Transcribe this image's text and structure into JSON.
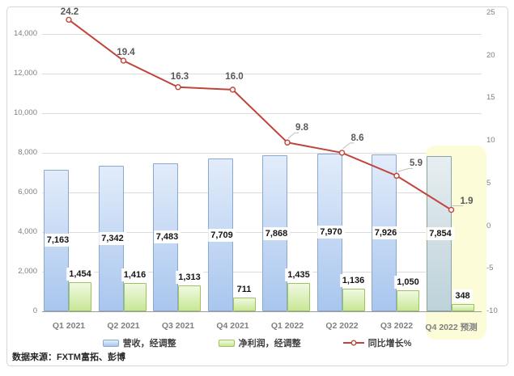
{
  "chart_data": {
    "type": "combo-bar-line",
    "categories": [
      "Q1 2021",
      "Q2 2021",
      "Q3 2021",
      "Q4 2021",
      "Q1 2022",
      "Q2 2022",
      "Q3 2022",
      "Q4 2022 预测"
    ],
    "series": [
      {
        "name": "营收，经调整",
        "type": "bar",
        "axis": "left",
        "values": [
          7163,
          7342,
          7483,
          7709,
          7868,
          7970,
          7926,
          7854
        ],
        "value_labels": [
          "7,163",
          "7,342",
          "7,483",
          "7,709",
          "7,868",
          "7,970",
          "7,926",
          "7,854"
        ]
      },
      {
        "name": "净利润，经调整",
        "type": "bar",
        "axis": "left",
        "values": [
          1454,
          1416,
          1313,
          711,
          1435,
          1136,
          1050,
          348
        ],
        "value_labels": [
          "1,454",
          "1,416",
          "1,313",
          "711",
          "1,435",
          "1,136",
          "1,050",
          "348"
        ]
      },
      {
        "name": "同比增长%",
        "type": "line",
        "axis": "right",
        "values": [
          24.2,
          19.4,
          16.3,
          16.0,
          9.8,
          8.6,
          5.9,
          1.9
        ],
        "value_labels": [
          "24.2",
          "19.4",
          "16.3",
          "16.0",
          "9.8",
          "8.6",
          "5.9",
          "1.9"
        ]
      }
    ],
    "left_axis": {
      "tick_values": [
        14000,
        12000,
        10000,
        8000,
        6000,
        4000,
        2000,
        0
      ],
      "tick_labels": [
        "14,000",
        "12,000",
        "10,000",
        "8,000",
        "6,000",
        "4,000",
        "2,000",
        "0"
      ],
      "min": 0
    },
    "right_axis": {
      "tick_values": [
        25,
        20,
        15,
        10,
        5,
        0,
        -5,
        -10
      ],
      "tick_labels": [
        "25",
        "20",
        "15",
        "10",
        "5",
        "0",
        "-5",
        "-10"
      ],
      "min": -10,
      "max": 25
    },
    "grid": true,
    "legend_position": "bottom",
    "highlight_category": "Q4 2022 预测",
    "source": "数据来源：FXTM富拓、彭博"
  },
  "colors": {
    "revenue_bar_top": "#e2ecfa",
    "revenue_bar_bottom": "#a9c6ee",
    "revenue_bar_border": "#8aa9cf",
    "profit_bar_top": "#f0f9e2",
    "profit_bar_bottom": "#c8e795",
    "profit_bar_border": "#9dc25e",
    "forecast_bar_top": "#e7eef0",
    "forecast_bar_bottom": "#bdd2da",
    "forecast_bar_border": "#87a4b4",
    "growth_line": "#c0443c",
    "marker_fill": "#ffffff",
    "leader_line": "#bfbfbf",
    "highlight_fill": "#fcfcd8",
    "gridline": "#dcdcdc",
    "axis_text": "#7f7f7f",
    "bar_label_text": "#141414",
    "line_label_text": "#595959"
  }
}
